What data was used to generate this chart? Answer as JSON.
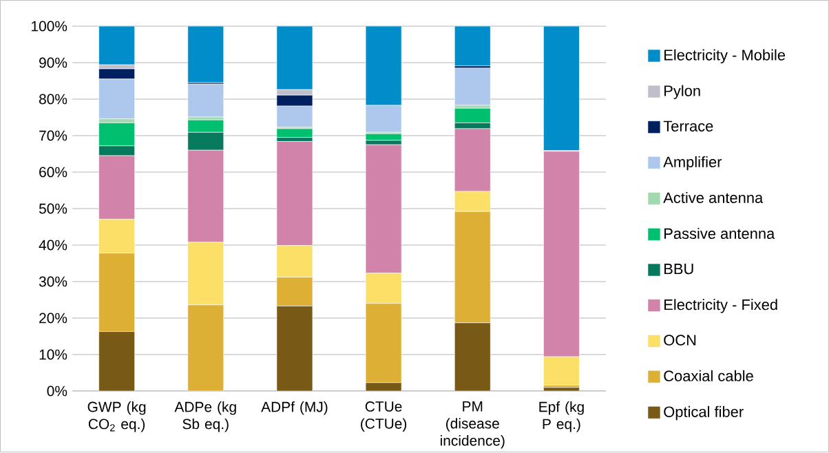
{
  "chart_data": {
    "type": "bar",
    "stacked": true,
    "categories": [
      "GWP (kg CO$_{2}$ eq.)",
      "ADPe (kg Sb eq.)",
      "ADPf (MJ)",
      "CTUe (CTUe)",
      "PM (disease incidence)",
      "Epf (kg P eq.)"
    ],
    "series": [
      {
        "name": "Optical fiber",
        "color": "#785a16",
        "values": [
          16.3,
          0,
          23.3,
          2.3,
          18.7,
          1.0
        ]
      },
      {
        "name": "Coaxial cable",
        "color": "#ddb035",
        "values": [
          21.5,
          23.6,
          7.9,
          21.7,
          30.5,
          0.6
        ]
      },
      {
        "name": "OCN",
        "color": "#fbdf66",
        "values": [
          9.3,
          17.2,
          8.7,
          8.3,
          5.5,
          7.8
        ]
      },
      {
        "name": "Electricity - Fixed",
        "color": "#d183aa",
        "values": [
          17.4,
          25.2,
          28.5,
          35.2,
          17.2,
          56.3
        ]
      },
      {
        "name": "BBU",
        "color": "#077a5e",
        "values": [
          2.7,
          4.9,
          1.1,
          1.2,
          1.6,
          0
        ]
      },
      {
        "name": "Passive antenna",
        "color": "#00bf6f",
        "values": [
          6.3,
          3.4,
          2.4,
          1.8,
          4.0,
          0
        ]
      },
      {
        "name": "Active antenna",
        "color": "#a3d9b1",
        "values": [
          1.1,
          0.8,
          0.4,
          0.4,
          0.8,
          0
        ]
      },
      {
        "name": "Amplifier",
        "color": "#adc8ec",
        "values": [
          10.9,
          9.0,
          5.8,
          7.4,
          10.2,
          0.2
        ]
      },
      {
        "name": "Terrace",
        "color": "#002060",
        "values": [
          2.8,
          0.4,
          3.0,
          0,
          0.6,
          0
        ]
      },
      {
        "name": "Pylon",
        "color": "#bfbfcc",
        "values": [
          1.1,
          0,
          1.5,
          0,
          null,
          0
        ]
      },
      {
        "name": "Electricity - Mobile",
        "color": "#008dc9",
        "values": [
          10.6,
          15.5,
          17.4,
          21.7,
          10.9,
          34.1
        ]
      }
    ],
    "ylim": [
      0,
      100
    ],
    "yticks": [
      {
        "value": 0,
        "label": "0%"
      },
      {
        "value": 10,
        "label": "10%"
      },
      {
        "value": 20,
        "label": "20%"
      },
      {
        "value": 30,
        "label": "30%"
      },
      {
        "value": 40,
        "label": "40%"
      },
      {
        "value": 50,
        "label": "50%"
      },
      {
        "value": 60,
        "label": "60%"
      },
      {
        "value": 70,
        "label": "70%"
      },
      {
        "value": 80,
        "label": "80%"
      },
      {
        "value": 90,
        "label": "90%"
      },
      {
        "value": 100,
        "label": "100%"
      }
    ],
    "grid": "y",
    "legend": "right"
  }
}
